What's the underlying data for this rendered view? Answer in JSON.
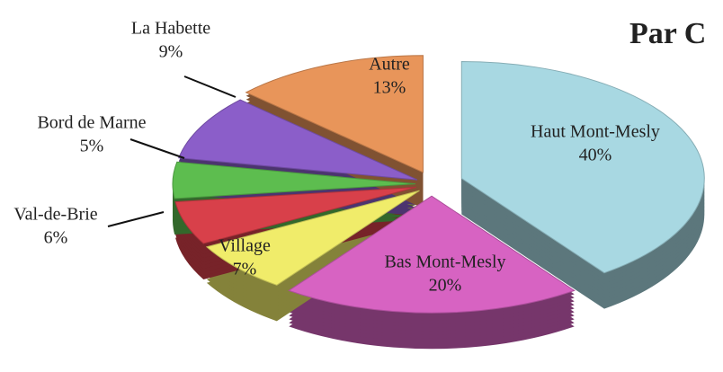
{
  "chart_data": {
    "type": "pie",
    "title": "Par C",
    "categories": [
      "Haut Mont-Mesly",
      "Bas Mont-Mesly",
      "Village",
      "Val-de-Brie",
      "Bord de Marne",
      "La Habette",
      "Autre"
    ],
    "values": [
      40,
      20,
      7,
      6,
      5,
      9,
      13
    ],
    "value_labels": [
      "40%",
      "20%",
      "7%",
      "6%",
      "5%",
      "9%",
      "13%"
    ],
    "colors": [
      "#a8d8e2",
      "#d763c2",
      "#f0ec6a",
      "#d8404a",
      "#5dbd4f",
      "#8b5ec9",
      "#e8955a"
    ]
  }
}
